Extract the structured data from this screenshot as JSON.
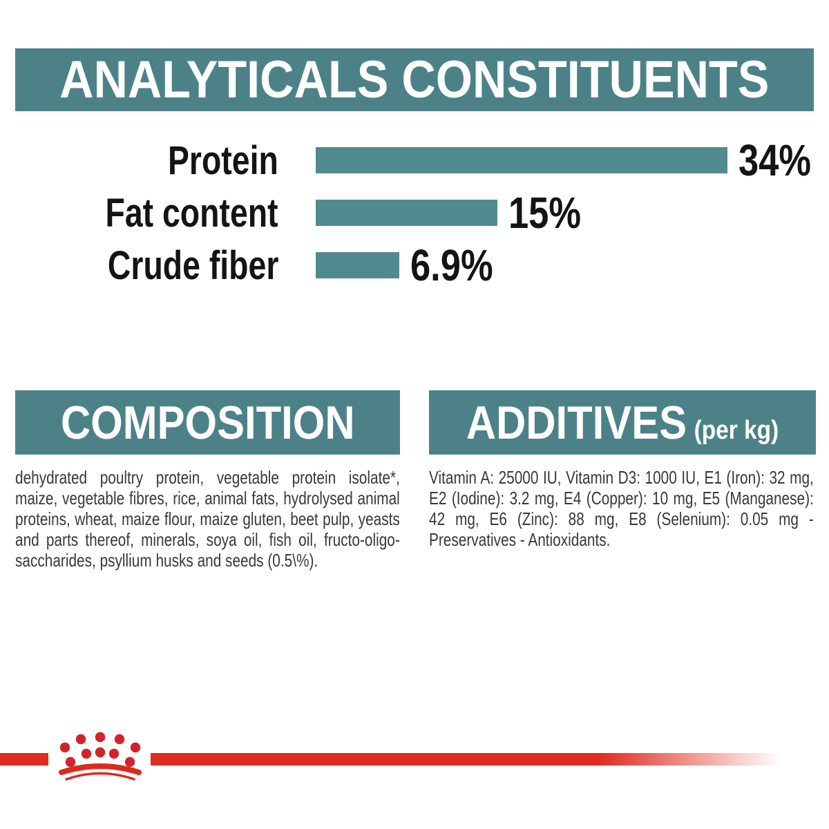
{
  "header": {
    "title": "ANALYTICALS CONSTITUENTS"
  },
  "chart_data": {
    "type": "bar",
    "orientation": "horizontal",
    "title": "ANALYTICALS CONSTITUENTS",
    "categories": [
      "Protein",
      "Fat content",
      "Crude fiber"
    ],
    "values": [
      34,
      15,
      6.9
    ],
    "value_labels": [
      "34%",
      "15%",
      "6.9%"
    ],
    "unit": "%",
    "xlim": [
      0,
      34
    ],
    "grid": false,
    "legend": "none",
    "bar_color": "#518a8e"
  },
  "sections": {
    "composition": {
      "title": "COMPOSITION",
      "body": "dehydrated poultry protein, vegetable protein isolate*, maize, vegetable fibres, rice, animal fats, hydrolysed animal proteins, wheat, maize flour, maize gluten, beet pulp, yeasts and parts thereof, minerals, soya oil, fish oil, fructo-oligo-saccharides, psyllium husks and seeds (0.5\\%)."
    },
    "additives": {
      "title": "ADDITIVES",
      "unit_label": "(per kg)",
      "body": "Vitamin A: 25000 IU, Vitamin D3: 1000 IU, E1 (Iron): 32 mg, E2 (Iodine): 3.2 mg, E4 (Copper): 10 mg, E5 (Manganese): 42 mg, E6 (Zinc): 88 mg, E8 (Selenium): 0.05 mg - Preservatives - Antioxidants."
    }
  },
  "footer": {
    "brand_logo": "royal-canin-crown"
  },
  "colors": {
    "banner_teal": "#4c8287",
    "bar_teal": "#518a8e",
    "accent_red": "#e02b1e",
    "body_text": "#383838"
  }
}
